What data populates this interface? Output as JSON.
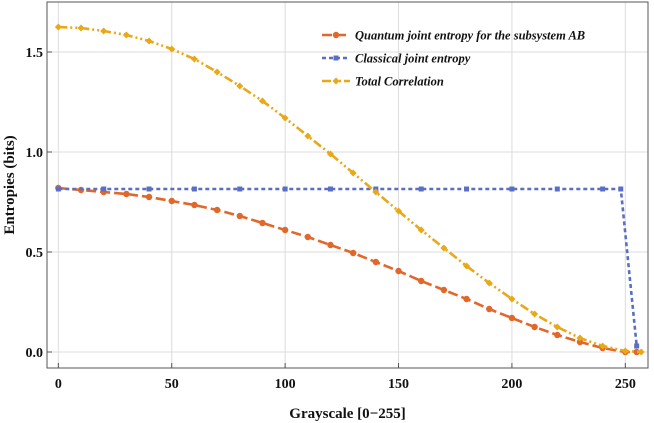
{
  "chart_data": {
    "type": "line",
    "title": "",
    "xlabel": "Grayscale [0−255]",
    "ylabel": "Entropies (bits)",
    "xlim": [
      -5,
      260
    ],
    "ylim": [
      -0.08,
      1.75
    ],
    "xticks": [
      0,
      50,
      100,
      150,
      200,
      250
    ],
    "xtick_labels": [
      "0",
      "50",
      "100",
      "150",
      "200",
      "250"
    ],
    "yticks": [
      0.0,
      0.5,
      1.0,
      1.5
    ],
    "ytick_labels": [
      "0.0",
      "0.5",
      "1.0",
      "1.5"
    ],
    "grid": true,
    "legend_position": "top-right",
    "series": [
      {
        "name": "Quantum joint entropy for the subsystem AB",
        "color": "#e0682a",
        "marker": "circle",
        "x": [
          0,
          10,
          20,
          30,
          40,
          50,
          60,
          70,
          80,
          90,
          100,
          110,
          120,
          130,
          140,
          150,
          160,
          170,
          180,
          190,
          200,
          210,
          220,
          230,
          240,
          250,
          255
        ],
        "y": [
          0.82,
          0.81,
          0.8,
          0.79,
          0.775,
          0.755,
          0.735,
          0.71,
          0.68,
          0.645,
          0.61,
          0.575,
          0.535,
          0.495,
          0.45,
          0.405,
          0.355,
          0.31,
          0.265,
          0.215,
          0.17,
          0.125,
          0.085,
          0.05,
          0.02,
          0.0,
          0.0
        ]
      },
      {
        "name": "Classical joint entropy",
        "color": "#5a6fc4",
        "marker": "square",
        "x": [
          0,
          20,
          40,
          60,
          80,
          100,
          120,
          140,
          160,
          180,
          200,
          220,
          240,
          248,
          255
        ],
        "y": [
          0.815,
          0.815,
          0.815,
          0.815,
          0.815,
          0.815,
          0.815,
          0.815,
          0.815,
          0.815,
          0.815,
          0.815,
          0.815,
          0.815,
          0.03
        ]
      },
      {
        "name": "Total Correlation",
        "color": "#e8a818",
        "marker": "diamond",
        "x": [
          0,
          10,
          20,
          30,
          40,
          50,
          60,
          70,
          80,
          90,
          100,
          110,
          120,
          130,
          140,
          150,
          160,
          170,
          180,
          190,
          200,
          210,
          220,
          230,
          240,
          250,
          257
        ],
        "y": [
          1.625,
          1.62,
          1.605,
          1.585,
          1.555,
          1.515,
          1.465,
          1.4,
          1.33,
          1.255,
          1.17,
          1.08,
          0.99,
          0.895,
          0.8,
          0.705,
          0.61,
          0.52,
          0.43,
          0.345,
          0.265,
          0.19,
          0.125,
          0.07,
          0.03,
          0.005,
          0.0
        ]
      }
    ]
  }
}
